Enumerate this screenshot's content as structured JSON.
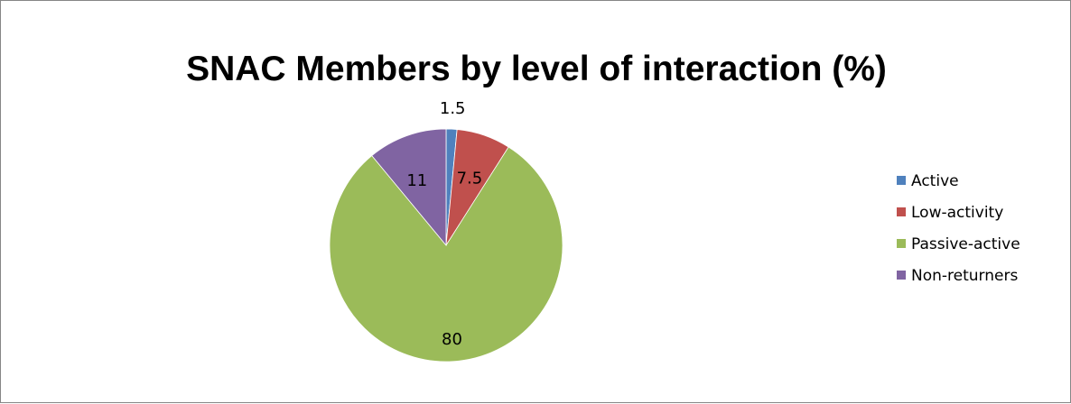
{
  "chart_data": {
    "type": "pie",
    "title": "SNAC Members by level of interaction (%)",
    "categories": [
      "Active",
      "Low-activity",
      "Passive-active",
      "Non-returners"
    ],
    "values": [
      1.5,
      7.5,
      80,
      11
    ],
    "data_labels": [
      "1.5",
      "7.5",
      "80",
      "11"
    ],
    "colors": [
      "#4f81bd",
      "#c0504d",
      "#9bbb59",
      "#8064a2"
    ],
    "start_angle": "12 o'clock",
    "direction": "clockwise",
    "legend_position": "right"
  }
}
